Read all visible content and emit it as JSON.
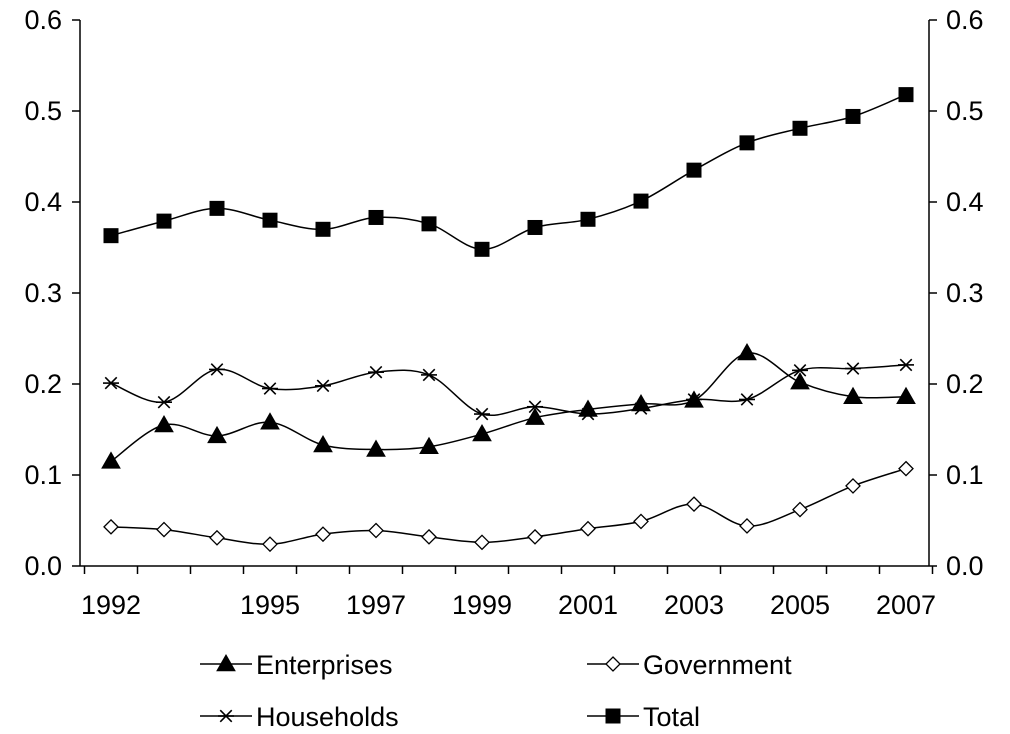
{
  "chart_data": {
    "type": "line",
    "title": "",
    "xlabel": "",
    "ylabel": "",
    "ylim": [
      0,
      0.6
    ],
    "y_ticks": [
      "0.0",
      "0.1",
      "0.2",
      "0.3",
      "0.4",
      "0.5",
      "0.6"
    ],
    "x_tick_labels": [
      "1992",
      "1995",
      "1997",
      "1999",
      "2001",
      "2003",
      "2005",
      "2007"
    ],
    "x": [
      1992,
      1993,
      1994,
      1995,
      1996,
      1997,
      1998,
      1999,
      2000,
      2001,
      2002,
      2003,
      2004,
      2005,
      2006,
      2007
    ],
    "grid": false,
    "secondary_y_axis": true,
    "legend_position": "bottom",
    "series": [
      {
        "name": "Enterprises",
        "marker": "triangle",
        "values": [
          0.115,
          0.155,
          0.143,
          0.158,
          0.133,
          0.128,
          0.131,
          0.145,
          0.163,
          0.172,
          0.178,
          0.182,
          0.234,
          0.202,
          0.186,
          0.186
        ]
      },
      {
        "name": "Government",
        "marker": "diamond",
        "values": [
          0.043,
          0.04,
          0.031,
          0.024,
          0.035,
          0.039,
          0.032,
          0.026,
          0.032,
          0.041,
          0.049,
          0.068,
          0.044,
          0.062,
          0.088,
          0.107
        ]
      },
      {
        "name": "Households",
        "marker": "star",
        "values": [
          0.201,
          0.18,
          0.216,
          0.195,
          0.198,
          0.213,
          0.21,
          0.167,
          0.175,
          0.167,
          0.173,
          0.183,
          0.183,
          0.215,
          0.217,
          0.221
        ]
      },
      {
        "name": "Total",
        "marker": "square",
        "values": [
          0.363,
          0.379,
          0.393,
          0.38,
          0.37,
          0.383,
          0.376,
          0.348,
          0.372,
          0.381,
          0.401,
          0.435,
          0.465,
          0.481,
          0.494,
          0.518
        ]
      }
    ]
  }
}
